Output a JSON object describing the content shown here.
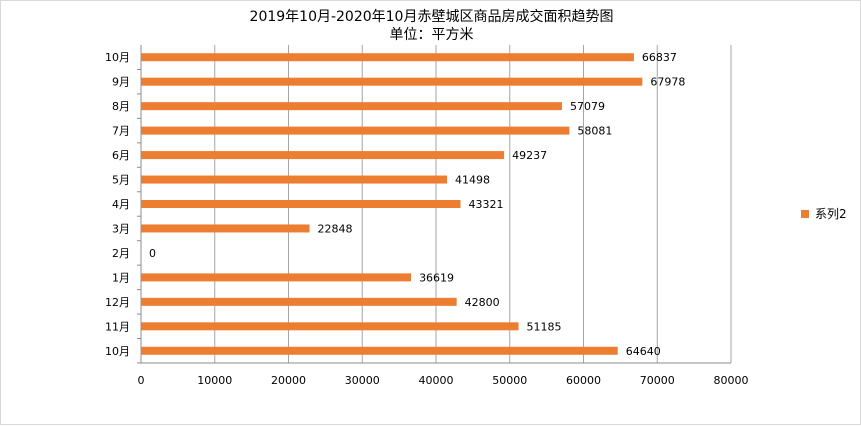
{
  "chart_data": {
    "type": "bar",
    "orientation": "horizontal",
    "title": "2019年10月-2020年10月赤壁城区商品房成交面积趋势图",
    "subtitle": "单位：平方米",
    "categories": [
      "10月",
      "11月",
      "12月",
      "1月",
      "2月",
      "3月",
      "4月",
      "5月",
      "6月",
      "7月",
      "8月",
      "9月",
      "10月"
    ],
    "series": [
      {
        "name": "系列2",
        "color": "#ED7D31",
        "values": [
          64640,
          51185,
          42800,
          36619,
          0,
          22848,
          43321,
          41498,
          49237,
          58081,
          57079,
          67978,
          66837
        ]
      }
    ],
    "xlim": [
      0,
      80000
    ],
    "x_ticks": [
      0,
      10000,
      20000,
      30000,
      40000,
      50000,
      60000,
      70000,
      80000
    ],
    "grid": true,
    "legend": "right"
  }
}
